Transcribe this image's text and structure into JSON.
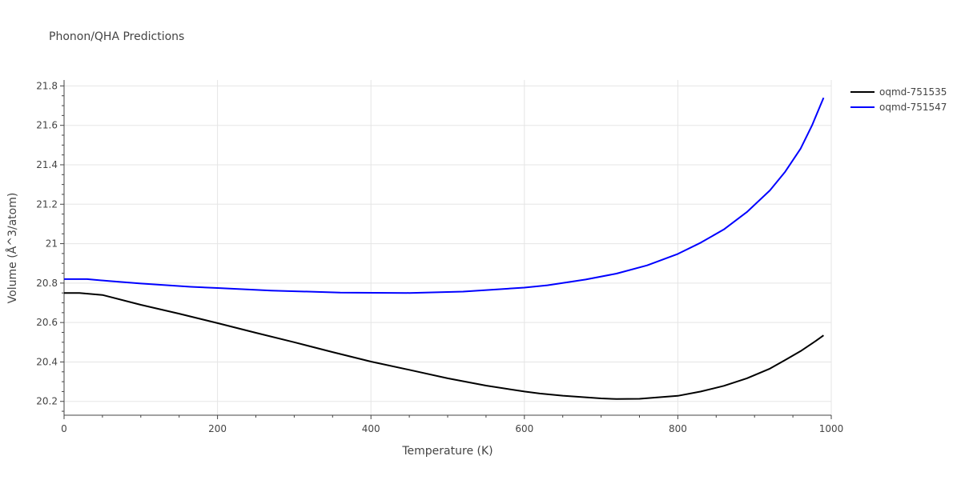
{
  "chart_data": {
    "type": "line",
    "title": "Phonon/QHA Predictions",
    "xlabel": "Temperature (K)",
    "ylabel": "Volume (Å^3/atom)",
    "xlim": [
      0,
      1000
    ],
    "ylim": [
      20.13,
      21.83
    ],
    "xticks": [
      0,
      200,
      400,
      600,
      800,
      1000
    ],
    "yticks": [
      20.2,
      20.4,
      20.6,
      20.8,
      21,
      21.2,
      21.4,
      21.6,
      21.8
    ],
    "xtick_labels": [
      "0",
      "200",
      "400",
      "600",
      "800",
      "1000"
    ],
    "ytick_labels": [
      "20.2",
      "20.4",
      "20.6",
      "20.8",
      "21",
      "21.2",
      "21.4",
      "21.6",
      "21.8"
    ],
    "grid": true,
    "legend": "top-right",
    "series": [
      {
        "name": "oqmd-751535",
        "color": "#000000",
        "x": [
          0,
          20,
          50,
          100,
          150,
          200,
          250,
          300,
          350,
          400,
          450,
          500,
          550,
          600,
          620,
          650,
          700,
          720,
          750,
          800,
          830,
          860,
          890,
          920,
          940,
          960,
          980,
          990
        ],
        "y": [
          20.75,
          20.75,
          20.74,
          20.69,
          20.645,
          20.597,
          20.548,
          20.5,
          20.45,
          20.402,
          20.36,
          20.317,
          20.28,
          20.25,
          20.24,
          20.229,
          20.215,
          20.212,
          20.213,
          20.228,
          20.25,
          20.279,
          20.317,
          20.366,
          20.41,
          20.455,
          20.507,
          20.535
        ]
      },
      {
        "name": "oqmd-751547",
        "color": "#0000ff",
        "x": [
          0,
          30,
          60,
          100,
          165,
          200,
          270,
          360,
          450,
          520,
          600,
          630,
          680,
          720,
          760,
          800,
          830,
          860,
          890,
          920,
          940,
          960,
          975,
          990
        ],
        "y": [
          20.82,
          20.82,
          20.81,
          20.798,
          20.781,
          20.775,
          20.762,
          20.752,
          20.75,
          20.757,
          20.777,
          20.789,
          20.818,
          20.848,
          20.89,
          20.948,
          21.005,
          21.072,
          21.16,
          21.27,
          21.365,
          21.482,
          21.6,
          21.74
        ]
      }
    ]
  }
}
